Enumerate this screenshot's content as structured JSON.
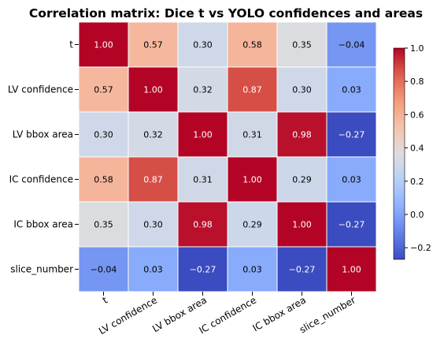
{
  "chart_data": {
    "type": "heatmap",
    "title": "Correlation matrix: Dice t vs YOLO confidences and areas",
    "labels": [
      "t",
      "LV confidence",
      "LV bbox area",
      "IC confidence",
      "IC bbox area",
      "slice_number"
    ],
    "matrix": [
      [
        1.0,
        0.57,
        0.3,
        0.58,
        0.35,
        -0.04
      ],
      [
        0.57,
        1.0,
        0.32,
        0.87,
        0.3,
        0.03
      ],
      [
        0.3,
        0.32,
        1.0,
        0.31,
        0.98,
        -0.27
      ],
      [
        0.58,
        0.87,
        0.31,
        1.0,
        0.29,
        0.03
      ],
      [
        0.35,
        0.3,
        0.98,
        0.29,
        1.0,
        -0.27
      ],
      [
        -0.04,
        0.03,
        -0.27,
        0.03,
        -0.27,
        1.0
      ]
    ],
    "value_format": "2dp",
    "colormap": "coolwarm",
    "color_range": [
      -0.27,
      1.0
    ],
    "colorbar": {
      "ticks": [
        -0.2,
        0.0,
        0.2,
        0.4,
        0.6,
        0.8,
        1.0
      ],
      "tick_labels": [
        "−0.2",
        "0.0",
        "0.2",
        "0.4",
        "0.6",
        "0.8",
        "1.0"
      ]
    }
  }
}
